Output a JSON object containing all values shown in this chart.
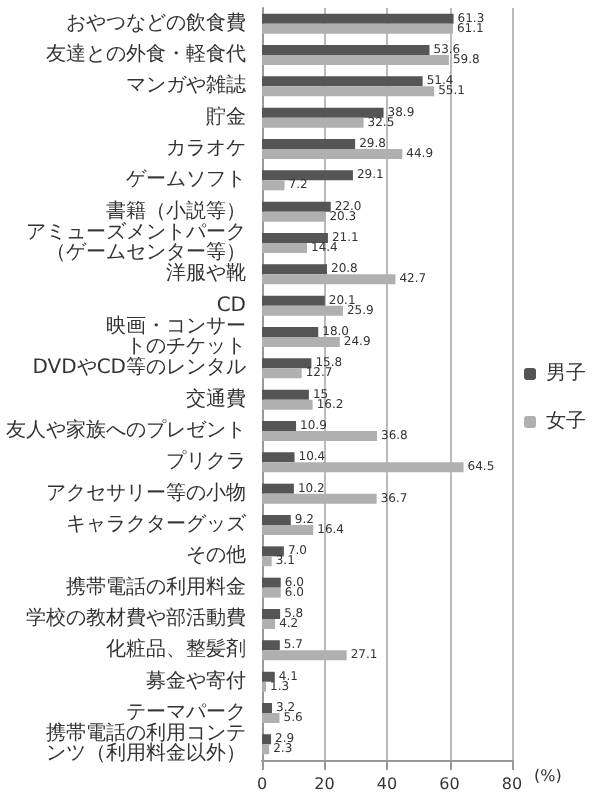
{
  "chart_data": {
    "type": "bar",
    "orientation": "horizontal",
    "xlabel": "(%)",
    "categories": [
      "おやつなどの飲食費",
      "友達との外食・軽食代",
      "マンガや雑誌",
      "貯金",
      "カラオケ",
      "ゲームソフト",
      "書籍（小説等）",
      "アミューズメントパーク（ゲームセンター等）",
      "洋服や靴",
      "CD",
      "映画・コンサートのチケット",
      "DVDやCD等のレンタル",
      "交通費",
      "友人や家族へのプレゼント",
      "プリクラ",
      "アクセサリー等の小物",
      "キャラクターグッズ",
      "その他",
      "携帯電話の利用料金",
      "学校の教材費や部活動費",
      "化粧品、整髪剤",
      "募金や寄付",
      "テーマパーク",
      "携帯電話の利用コンテンツ（利用料金以外）"
    ],
    "series": [
      {
        "name": "男子",
        "color": "#555555",
        "values": [
          61.3,
          53.6,
          51.4,
          38.9,
          29.8,
          29.1,
          22.0,
          21.1,
          20.8,
          20.1,
          18.0,
          15.8,
          15,
          10.9,
          10.4,
          10.2,
          9.2,
          7.0,
          6.0,
          5.8,
          5.7,
          4.1,
          3.2,
          2.9
        ],
        "value_labels": [
          "61.3",
          "53.6",
          "51.4",
          "38.9",
          "29.8",
          "29.1",
          "22.0",
          "21.1",
          "20.8",
          "20.1",
          "18.0",
          "15.8",
          "15",
          "10.9",
          "10.4",
          "10.2",
          "9.2",
          "7.0",
          "6.0",
          "5.8",
          "5.7",
          "4.1",
          "3.2",
          "2.9"
        ]
      },
      {
        "name": "女子",
        "color": "#b0b0b0",
        "values": [
          61.1,
          59.8,
          55.1,
          32.5,
          44.9,
          7.2,
          20.3,
          14.4,
          42.7,
          25.9,
          24.9,
          12.7,
          16.2,
          36.8,
          64.5,
          36.7,
          16.4,
          3.1,
          6.0,
          4.2,
          27.1,
          1.3,
          5.6,
          2.3
        ],
        "value_labels": [
          "61.1",
          "59.8",
          "55.1",
          "32.5",
          "44.9",
          "7.2",
          "20.3",
          "14.4",
          "42.7",
          "25.9",
          "24.9",
          "12.7",
          "16.2",
          "36.8",
          "64.5",
          "36.7",
          "16.4",
          "3.1",
          "6.0",
          "4.2",
          "27.1",
          "1.3",
          "5.6",
          "2.3"
        ]
      }
    ],
    "xlim": [
      0,
      80
    ],
    "xticks": [
      0,
      20,
      40,
      60,
      80
    ],
    "grid": "x",
    "legend": "right"
  }
}
